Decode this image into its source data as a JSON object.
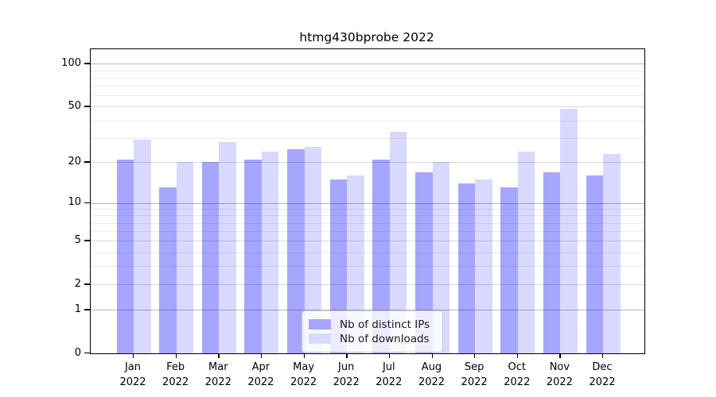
{
  "title": "htmg430bprobe 2022",
  "chart_data": {
    "type": "bar",
    "title": "htmg430bprobe 2022",
    "categories": [
      "Jan",
      "Feb",
      "Mar",
      "Apr",
      "May",
      "Jun",
      "Jul",
      "Aug",
      "Sep",
      "Oct",
      "Nov",
      "Dec"
    ],
    "category_year": "2022",
    "series": [
      {
        "name": "Nb of distinct IPs",
        "color": "rgba(0,0,255,0.35)",
        "legend_color": "#a6a6ff",
        "values": [
          21,
          13,
          20,
          21,
          25,
          15,
          21,
          17,
          14,
          13,
          17,
          16
        ]
      },
      {
        "name": "Nb of downloads",
        "color": "rgba(0,0,255,0.15)",
        "legend_color": "#d9d9ff",
        "values": [
          29,
          20,
          28,
          24,
          26,
          16,
          33,
          20,
          15,
          24,
          48,
          23
        ]
      }
    ],
    "yscale": "log1p",
    "ylim": [
      0,
      127
    ],
    "yticks": [
      100,
      50,
      20,
      10,
      5,
      2,
      1,
      0
    ],
    "major_gridlines": [
      1,
      10,
      100
    ],
    "labeled_minor_gridlines": [
      2,
      5,
      20,
      50
    ],
    "minor_gridlines": [
      3,
      4,
      6,
      7,
      8,
      9,
      30,
      40,
      60,
      70,
      80,
      90
    ],
    "grid": true,
    "legend_position": "lower center",
    "xlabel": "",
    "ylabel": ""
  }
}
